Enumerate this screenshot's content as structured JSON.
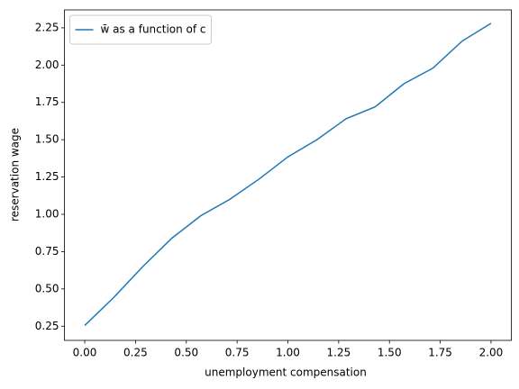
{
  "chart_data": {
    "type": "line",
    "xlabel": "unemployment compensation",
    "ylabel": "reservation wage",
    "x": [
      0,
      0.143,
      0.286,
      0.429,
      0.571,
      0.714,
      0.857,
      1.0,
      1.143,
      1.286,
      1.429,
      1.571,
      1.714,
      1.857,
      2.0
    ],
    "series": [
      {
        "name": "w̄ as a function of c",
        "color": "#1f77b4",
        "values": [
          0.255,
          0.443,
          0.65,
          0.84,
          0.99,
          1.1,
          1.235,
          1.385,
          1.5,
          1.64,
          1.72,
          1.875,
          1.98,
          2.16,
          2.28
        ]
      }
    ],
    "xlim": [
      -0.1,
      2.1
    ],
    "ylim": [
      0.155,
      2.37
    ],
    "xticks": [
      {
        "value": 0,
        "label": "0.00"
      },
      {
        "value": 0.25,
        "label": "0.25"
      },
      {
        "value": 0.5,
        "label": "0.50"
      },
      {
        "value": 0.75,
        "label": "0.75"
      },
      {
        "value": 1,
        "label": "1.00"
      },
      {
        "value": 1.25,
        "label": "1.25"
      },
      {
        "value": 1.5,
        "label": "1.50"
      },
      {
        "value": 1.75,
        "label": "1.75"
      },
      {
        "value": 2,
        "label": "2.00"
      }
    ],
    "yticks": [
      {
        "value": 0.25,
        "label": "0.25"
      },
      {
        "value": 0.5,
        "label": "0.50"
      },
      {
        "value": 0.75,
        "label": "0.75"
      },
      {
        "value": 1,
        "label": "1.00"
      },
      {
        "value": 1.25,
        "label": "1.25"
      },
      {
        "value": 1.5,
        "label": "1.50"
      },
      {
        "value": 1.75,
        "label": "1.75"
      },
      {
        "value": 2,
        "label": "2.00"
      },
      {
        "value": 2.25,
        "label": "2.25"
      }
    ],
    "legend": "upper left",
    "grid": false
  }
}
